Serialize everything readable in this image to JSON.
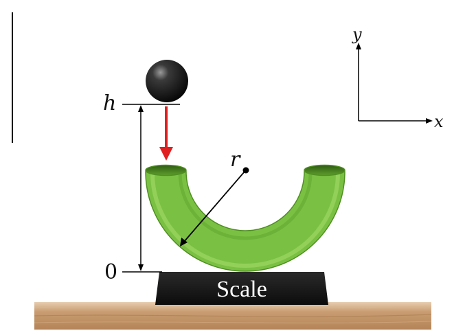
{
  "labels": {
    "height": "h",
    "zero": "0",
    "radius": "r",
    "axis_y": "y",
    "axis_x": "x",
    "scale": "Scale"
  },
  "colors": {
    "tube_green": "#7ac143",
    "tube_dark": "#3f7a1d",
    "ball": "#1a1a1a",
    "arrow_red": "#e02020",
    "scale_body": "#1c1c1c",
    "table_wood": "#c9a27a"
  },
  "icons": {
    "ball": "ball-sphere",
    "scale": "weighing-scale",
    "tube": "u-shaped-tube"
  }
}
